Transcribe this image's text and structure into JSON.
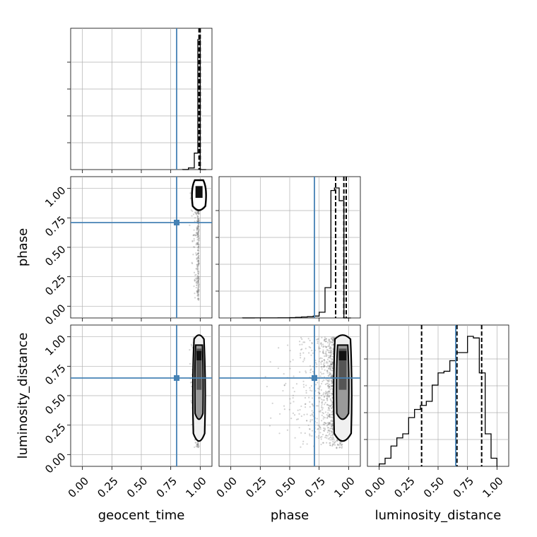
{
  "chart_data": {
    "type": "corner",
    "parameters": [
      "geocent_time",
      "phase",
      "luminosity_distance"
    ],
    "truths": {
      "geocent_time": 0.8,
      "phase": 0.71,
      "luminosity_distance": 0.65
    },
    "axis_range": [
      -0.1,
      1.1
    ],
    "ticks": [
      "0.00",
      "0.25",
      "0.50",
      "0.75",
      "1.00"
    ],
    "tick_values": [
      0.0,
      0.25,
      0.5,
      0.75,
      1.0
    ],
    "grid": true,
    "colors": {
      "truth": "#4682b4",
      "hist": "#000000",
      "scatter": "#7f7f7f",
      "grid": "#b0b0b0"
    },
    "histograms": [
      {
        "parameter": "geocent_time",
        "bin_edges": [
          0.85,
          0.9,
          0.95,
          0.98,
          1.0,
          1.05
        ],
        "counts": [
          2,
          60,
          600,
          4740,
          0
        ],
        "quantiles": [
          0.99,
          0.995,
          1.0
        ]
      },
      {
        "parameter": "phase",
        "bin_edges": [
          0.1,
          0.2,
          0.3,
          0.4,
          0.5,
          0.55,
          0.6,
          0.65,
          0.7,
          0.75,
          0.8,
          0.85,
          0.88,
          0.92,
          0.96,
          1.02
        ],
        "counts": [
          1,
          2,
          3,
          5,
          10,
          20,
          30,
          40,
          60,
          180,
          950,
          4000,
          4080,
          3680,
          0
        ],
        "quantiles": [
          0.89,
          0.96,
          0.98
        ]
      },
      {
        "parameter": "luminosity_distance",
        "bin_edges": [
          0.0,
          0.05,
          0.1,
          0.15,
          0.2,
          0.25,
          0.3,
          0.35,
          0.4,
          0.45,
          0.5,
          0.55,
          0.6,
          0.65,
          0.7,
          0.75,
          0.8,
          0.85,
          0.9,
          0.95,
          1.0
        ],
        "counts": [
          3,
          10,
          25,
          35,
          40,
          60,
          70,
          75,
          80,
          100,
          115,
          117,
          130,
          140,
          140,
          160,
          158,
          115,
          40,
          10
        ],
        "quantiles": [
          0.36,
          0.66,
          0.87
        ]
      }
    ],
    "pairs": [
      {
        "x": "geocent_time",
        "y": "phase",
        "x_center": 0.99,
        "x_spread": 0.02,
        "y_range": [
          0.05,
          1.0
        ]
      },
      {
        "x": "geocent_time",
        "y": "luminosity_distance",
        "x_center": 0.99,
        "x_spread": 0.02,
        "y_range": [
          0.05,
          1.0
        ]
      },
      {
        "x": "phase",
        "y": "luminosity_distance",
        "x_center": 0.95,
        "x_spread": 0.15,
        "y_range": [
          0.05,
          1.0
        ]
      }
    ]
  }
}
